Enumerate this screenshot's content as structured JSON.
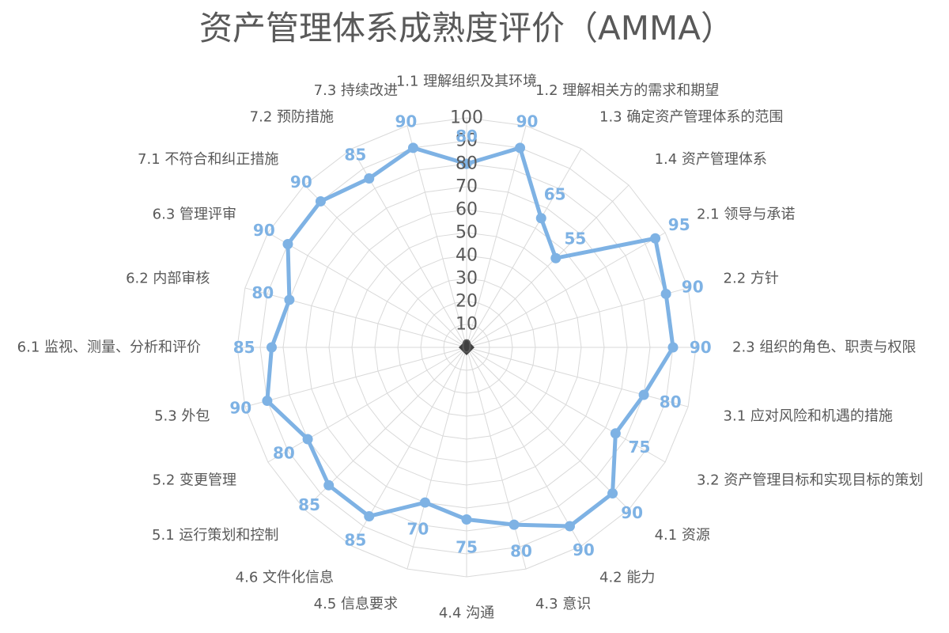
{
  "chart_data": {
    "type": "radar",
    "title": "资产管理体系成熟度评价（AMMA）",
    "categories": [
      "1.1 理解组织及其环境",
      "1.2  理解相关方的需求和期望",
      "1.3  确定资产管理体系的范围",
      "1.4 资产管理体系",
      "2.1 领导与承诺",
      "2.2 方针",
      "2.3  组织的角色、职责与权限",
      "3.1 应对风险和机遇的措施",
      "3.2  资产管理目标和实现目标的策划",
      "4.1 资源",
      "4.2 能力",
      "4.3 意识",
      "4.4 沟通",
      "4.5 信息要求",
      "4.6 文件化信息",
      "5.1 运行策划和控制",
      "5.2 变更管理",
      "5.3 外包",
      "6.1  监视、测量、分析和评价",
      "6.2 内部审核",
      "6.3 管理评审",
      "7.1 不符合和纠正措施",
      "7.2 预防措施",
      "7.3 持续改进"
    ],
    "series": [
      {
        "values": [
          80,
          90,
          65,
          55,
          95,
          90,
          90,
          80,
          75,
          90,
          90,
          80,
          75,
          70,
          85,
          85,
          80,
          90,
          85,
          80,
          90,
          90,
          85,
          90
        ],
        "color": "#7eb2e4"
      }
    ],
    "r_ticks": [
      "0",
      "10",
      "20",
      "30",
      "40",
      "50",
      "60",
      "70",
      "80",
      "90",
      "100"
    ],
    "rlim": [
      0,
      100
    ],
    "grid": true,
    "grid_color": "#d9d9d9",
    "label_color": "#595959",
    "center_marker_color": "#404040"
  }
}
